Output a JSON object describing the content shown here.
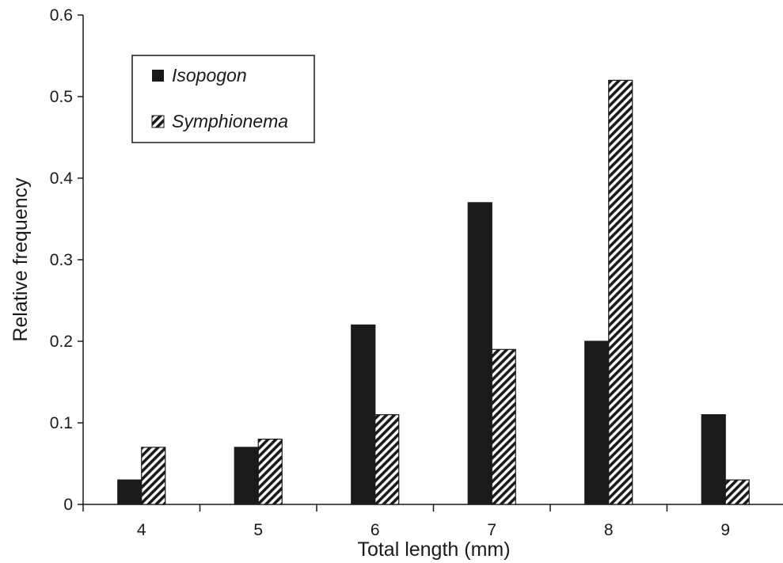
{
  "chart_data": {
    "type": "bar",
    "categories": [
      "4",
      "5",
      "6",
      "7",
      "8",
      "9"
    ],
    "series": [
      {
        "name": "Isopogon",
        "values": [
          0.03,
          0.07,
          0.22,
          0.37,
          0.2,
          0.11
        ],
        "fill": "solid",
        "color": "#1a1a1a"
      },
      {
        "name": "Symphionema",
        "values": [
          0.07,
          0.08,
          0.11,
          0.19,
          0.52,
          0.03
        ],
        "fill": "diagonal-hatch",
        "color": "#1a1a1a"
      }
    ],
    "xlabel": "Total length (mm)",
    "ylabel": "Relative frequency",
    "ylim": [
      0,
      0.6
    ],
    "yticks": [
      "0",
      "0.1",
      "0.2",
      "0.3",
      "0.4",
      "0.5",
      "0.6"
    ],
    "grid": false,
    "legend": "top-left, boxed"
  }
}
